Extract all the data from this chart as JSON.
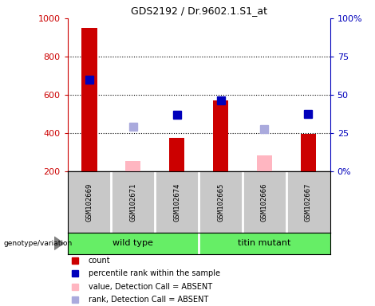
{
  "title": "GDS2192 / Dr.9602.1.S1_at",
  "samples": [
    "GSM102669",
    "GSM102671",
    "GSM102674",
    "GSM102665",
    "GSM102666",
    "GSM102667"
  ],
  "group_labels": [
    "wild type",
    "titin mutant"
  ],
  "group_split": 3,
  "bar_bottom": 200,
  "counts": [
    950,
    null,
    375,
    570,
    null,
    395
  ],
  "counts_absent": [
    null,
    255,
    null,
    null,
    285,
    null
  ],
  "percentile_ranks": [
    680,
    null,
    495,
    570,
    null,
    500
  ],
  "percentile_ranks_absent": [
    null,
    435,
    null,
    null,
    420,
    null
  ],
  "count_color": "#CC0000",
  "count_absent_color": "#FFB6C1",
  "rank_color": "#0000BB",
  "rank_absent_color": "#AAAADD",
  "ylim_left": [
    200,
    1000
  ],
  "grid_values": [
    400,
    600,
    800
  ],
  "bar_width": 0.35,
  "marker_size": 7,
  "legend_items": [
    {
      "label": "count",
      "color": "#CC0000"
    },
    {
      "label": "percentile rank within the sample",
      "color": "#0000BB"
    },
    {
      "label": "value, Detection Call = ABSENT",
      "color": "#FFB6C1"
    },
    {
      "label": "rank, Detection Call = ABSENT",
      "color": "#AAAADD"
    }
  ],
  "sample_box_color": "#C8C8C8",
  "group_green_color": "#66EE66",
  "left_axis_color": "#CC0000",
  "right_axis_color": "#0000BB"
}
